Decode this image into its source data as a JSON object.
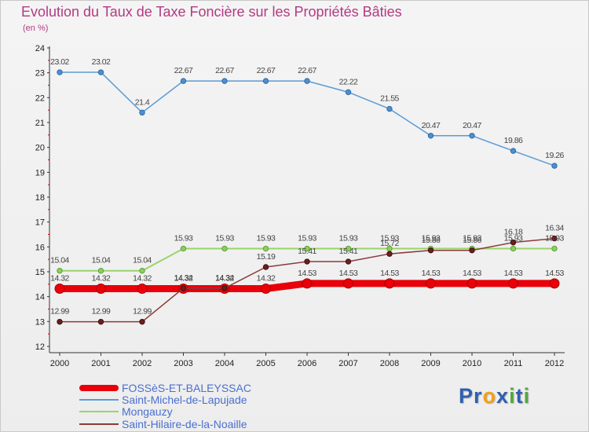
{
  "title": "Evolution du Taux de Taxe Foncière sur les Propriétés Bâties",
  "unit": "(en %)",
  "logo": {
    "text": "Proxiti",
    "letters": [
      "P",
      "r",
      "o",
      "x",
      "i",
      "t",
      "i"
    ],
    "colors": [
      "#2f5fb0",
      "#2f5fb0",
      "#f2a01a",
      "#2f5fb0",
      "#55a83a",
      "#2f5fb0",
      "#55a83a"
    ]
  },
  "chart_data": {
    "type": "line",
    "title": "Evolution du Taux de Taxe Foncière sur les Propriétés Bâties",
    "ylabel": "(en %)",
    "xlabel": "",
    "ylim": [
      12,
      24
    ],
    "yticks": [
      "12",
      "13",
      "14",
      "15",
      "16",
      "17",
      "18",
      "19",
      "20",
      "21",
      "22",
      "23",
      "24"
    ],
    "categories": [
      "2000",
      "2001",
      "2002",
      "2003",
      "2004",
      "2005",
      "2006",
      "2007",
      "2008",
      "2009",
      "2010",
      "2011",
      "2012"
    ],
    "grid": false,
    "series": [
      {
        "name": "FOSSèS-ET-BALEYSSAC",
        "color": "#e8000a",
        "values": [
          14.32,
          14.32,
          14.32,
          14.32,
          14.32,
          14.32,
          14.53,
          14.53,
          14.53,
          14.53,
          14.53,
          14.53,
          14.53
        ],
        "labels": [
          "14.32",
          "14.32",
          "14.32",
          "14.32",
          "14.32",
          "14.32",
          "14.53",
          "14.53",
          "14.53",
          "14.53",
          "14.53",
          "14.53",
          "14.53"
        ]
      },
      {
        "name": "Saint-Michel-de-Lapujade",
        "color": "#5b9bd5",
        "values": [
          23.02,
          23.02,
          21.4,
          22.67,
          22.67,
          22.67,
          22.67,
          22.22,
          21.55,
          20.47,
          20.47,
          19.86,
          19.26
        ],
        "labels": [
          "23.02",
          "23.02",
          "21.4",
          "22.67",
          "22.67",
          "22.67",
          "22.67",
          "22.22",
          "21.55",
          "20.47",
          "20.47",
          "19.86",
          "19.26"
        ]
      },
      {
        "name": "Mongauzy",
        "color": "#9ad46a",
        "values": [
          15.04,
          15.04,
          15.04,
          15.93,
          15.93,
          15.93,
          15.93,
          15.93,
          15.93,
          15.93,
          15.93,
          15.93,
          15.93
        ],
        "labels": [
          "15.04",
          "15.04",
          "15.04",
          "15.93",
          "15.93",
          "15.93",
          "15.93",
          "15.93",
          "15.93",
          "15.93",
          "15.93",
          "15.93",
          "15.93"
        ]
      },
      {
        "name": "Saint-Hilaire-de-la-Noaille",
        "color": "#8b3a3a",
        "values": [
          12.99,
          12.99,
          12.99,
          14.34,
          14.34,
          15.19,
          15.41,
          15.41,
          15.72,
          15.86,
          15.86,
          16.18,
          16.34
        ],
        "labels": [
          "12.99",
          "12.99",
          "12.99",
          "14.34",
          "14.34",
          "15.19",
          "15.41",
          "15.41",
          "15.72",
          "15.86",
          "15.86",
          "16.18",
          "16.34"
        ]
      }
    ]
  }
}
